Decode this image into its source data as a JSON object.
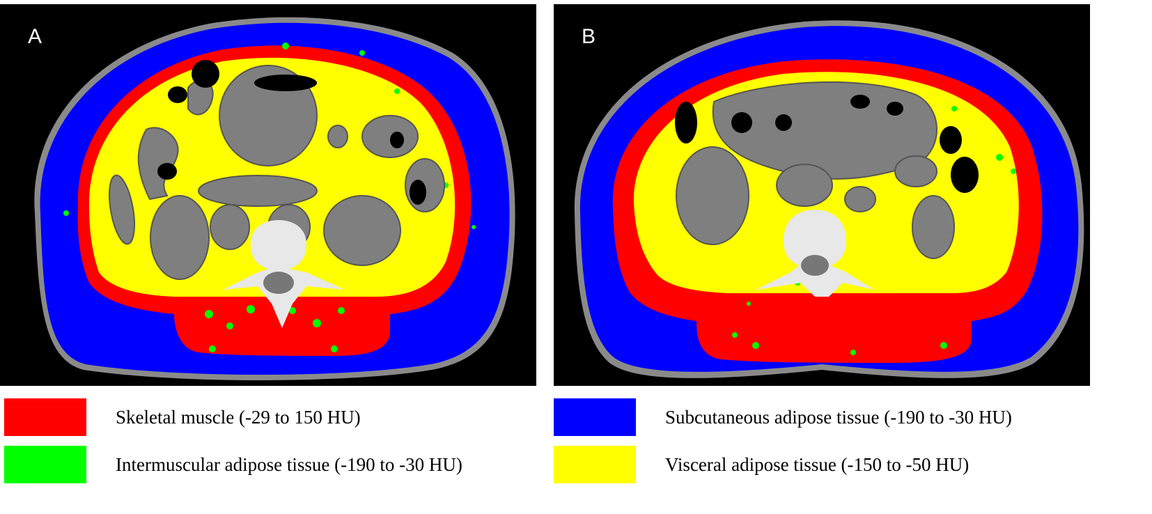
{
  "panels": [
    {
      "letter": "A"
    },
    {
      "letter": "B"
    }
  ],
  "legend": [
    {
      "color": "#ff0000",
      "label": "Skeletal muscle (-29 to 150 HU)"
    },
    {
      "color": "#00ff00",
      "label": "Intermuscular adipose tissue (-190 to -30 HU)"
    },
    {
      "color": "#0000ff",
      "label": "Subcutaneous adipose tissue (-190 to -30 HU)"
    },
    {
      "color": "#ffff00",
      "label": "Visceral adipose tissue (-150 to -50 HU)"
    }
  ]
}
